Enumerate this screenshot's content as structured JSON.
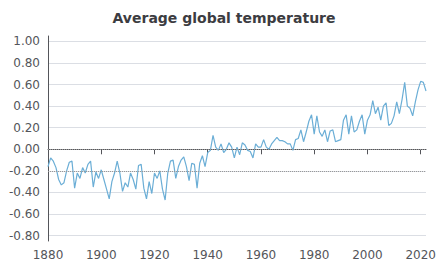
{
  "chart_data": {
    "type": "line",
    "title": "Average global temperature",
    "color": "#6baed6",
    "x": [
      1880,
      1881,
      1882,
      1883,
      1884,
      1885,
      1886,
      1887,
      1888,
      1889,
      1890,
      1891,
      1892,
      1893,
      1894,
      1895,
      1896,
      1897,
      1898,
      1899,
      1900,
      1901,
      1902,
      1903,
      1904,
      1905,
      1906,
      1907,
      1908,
      1909,
      1910,
      1911,
      1912,
      1913,
      1914,
      1915,
      1916,
      1917,
      1918,
      1919,
      1920,
      1921,
      1922,
      1923,
      1924,
      1925,
      1926,
      1927,
      1928,
      1929,
      1930,
      1931,
      1932,
      1933,
      1934,
      1935,
      1936,
      1937,
      1938,
      1939,
      1940,
      1941,
      1942,
      1943,
      1944,
      1945,
      1946,
      1947,
      1948,
      1949,
      1950,
      1951,
      1952,
      1953,
      1954,
      1955,
      1956,
      1957,
      1958,
      1959,
      1960,
      1961,
      1962,
      1963,
      1964,
      1965,
      1966,
      1967,
      1968,
      1969,
      1970,
      1971,
      1972,
      1973,
      1974,
      1975,
      1976,
      1977,
      1978,
      1979,
      1980,
      1981,
      1982,
      1983,
      1984,
      1985,
      1986,
      1987,
      1988,
      1989,
      1990,
      1991,
      1992,
      1993,
      1994,
      1995,
      1996,
      1997,
      1998,
      1999,
      2000,
      2001,
      2002,
      2003,
      2004,
      2005,
      2006,
      2007,
      2008,
      2009,
      2010,
      2011,
      2012,
      2013,
      2014,
      2015,
      2016,
      2017,
      2018,
      2019,
      2020,
      2021,
      2022
    ],
    "values": [
      -0.16,
      -0.08,
      -0.11,
      -0.17,
      -0.28,
      -0.33,
      -0.31,
      -0.2,
      -0.12,
      -0.11,
      -0.36,
      -0.22,
      -0.27,
      -0.17,
      -0.22,
      -0.14,
      -0.11,
      -0.35,
      -0.21,
      -0.27,
      -0.19,
      -0.28,
      -0.37,
      -0.46,
      -0.3,
      -0.22,
      -0.11,
      -0.22,
      -0.39,
      -0.31,
      -0.35,
      -0.22,
      -0.28,
      -0.37,
      -0.15,
      -0.14,
      -0.36,
      -0.46,
      -0.3,
      -0.41,
      -0.22,
      -0.27,
      -0.2,
      -0.37,
      -0.47,
      -0.22,
      -0.11,
      -0.1,
      -0.27,
      -0.16,
      -0.1,
      -0.07,
      -0.16,
      -0.29,
      -0.13,
      -0.14,
      -0.36,
      -0.13,
      -0.06,
      -0.16,
      -0.03,
      -0.01,
      0.13,
      0.02,
      -0.01,
      0.05,
      -0.03,
      0.0,
      0.06,
      0.02,
      -0.08,
      0.02,
      -0.05,
      0.06,
      0.04,
      -0.01,
      -0.02,
      -0.08,
      0.05,
      0.02,
      0.02,
      0.09,
      0.02,
      0.0,
      0.05,
      0.08,
      0.11,
      0.08,
      0.08,
      0.07,
      0.05,
      0.05,
      -0.01,
      0.09,
      0.1,
      0.18,
      0.07,
      0.16,
      0.26,
      0.32,
      0.14,
      0.31,
      0.16,
      0.12,
      0.18,
      0.07,
      0.17,
      0.18,
      0.07,
      0.08,
      0.09,
      0.27,
      0.32,
      0.14,
      0.31,
      0.16,
      0.18,
      0.26,
      0.32,
      0.14,
      0.27,
      0.32,
      0.45,
      0.33,
      0.39,
      0.27,
      0.4,
      0.43,
      0.22,
      0.24,
      0.31,
      0.44,
      0.33,
      0.46,
      0.62,
      0.4,
      0.38,
      0.31,
      0.44,
      0.55,
      0.63,
      0.62,
      0.54
    ],
    "xlim": [
      1880,
      2022
    ],
    "xticks": [
      1880,
      1900,
      1920,
      1940,
      1960,
      1980,
      2000,
      2020
    ],
    "ylim": [
      -0.85,
      1.05
    ],
    "yticks": [
      {
        "value": 1.0,
        "label": "1.00"
      },
      {
        "value": 0.8,
        "label": "0.80"
      },
      {
        "value": 0.6,
        "label": "0.60"
      },
      {
        "value": 0.4,
        "label": "0.40"
      },
      {
        "value": 0.2,
        "label": "0.20"
      },
      {
        "value": 0.0,
        "label": "0.00"
      },
      {
        "value": -0.2,
        "label": "-0.20"
      },
      {
        "value": -0.4,
        "label": "-0.40"
      },
      {
        "value": -0.6,
        "label": "-0.60"
      },
      {
        "value": -0.8,
        "label": "-0.80"
      }
    ],
    "reference_lines": [
      {
        "value": 0.0,
        "color": "#999999",
        "line_style": "dotted"
      },
      {
        "value": -0.2,
        "color": "#999999",
        "line_style": "dotted"
      }
    ],
    "grid": true
  }
}
